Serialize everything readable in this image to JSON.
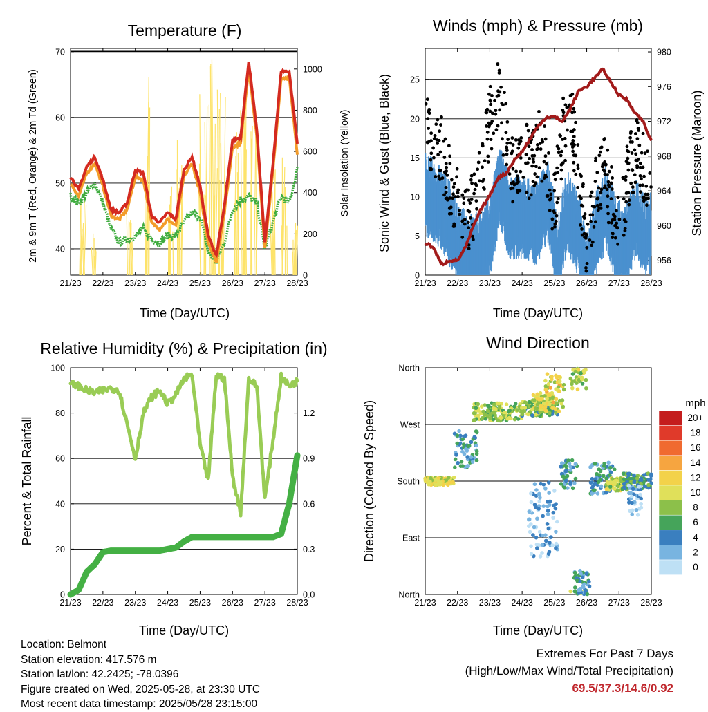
{
  "x_ticks": [
    "21/23",
    "22/23",
    "23/23",
    "24/23",
    "25/23",
    "26/23",
    "27/23",
    "28/23"
  ],
  "xlabel": "Time (Day/UTC)",
  "chart_data": [
    {
      "type": "line",
      "title": "Temperature (F)",
      "ylabel": "2m & 9m T (Red, Orange) & 2m Td (Green)",
      "ylim": [
        36,
        70.5
      ],
      "yticks": [
        40,
        50,
        60,
        70
      ],
      "y2label": "Solar Insolation (Yellow)",
      "y2lim": [
        0,
        1100
      ],
      "y2ticks": [
        0,
        200,
        400,
        600,
        800,
        1000
      ],
      "x": [
        0,
        0.25,
        0.5,
        0.75,
        1,
        1.25,
        1.5,
        1.75,
        2,
        2.25,
        2.5,
        2.75,
        3,
        3.25,
        3.5,
        3.75,
        4,
        4.25,
        4.5,
        4.75,
        5,
        5.25,
        5.5,
        5.75,
        6,
        6.25,
        6.5,
        6.75,
        7
      ],
      "series": [
        {
          "color": "#d42a20",
          "values": [
            51,
            49,
            52.5,
            54,
            50.5,
            46,
            45.5,
            47,
            52,
            51.5,
            45,
            44,
            45.5,
            44.5,
            52,
            54,
            49.5,
            42,
            39,
            46.5,
            56.5,
            57,
            68.5,
            58,
            41,
            53,
            67,
            67,
            56
          ]
        },
        {
          "color": "#f39c2a",
          "values": [
            50,
            48,
            51.5,
            53,
            49.5,
            45,
            44.5,
            46,
            51,
            50.5,
            44,
            43,
            44.5,
            43.5,
            51,
            53,
            48.5,
            41,
            38,
            45.5,
            55.5,
            56,
            67.5,
            57,
            40,
            52,
            66,
            66,
            54.5
          ]
        },
        {
          "color": "#3fac3f",
          "values": [
            48,
            47,
            48.5,
            50,
            47,
            43,
            41,
            41.5,
            42,
            43,
            41.5,
            41,
            42,
            42,
            44,
            45.5,
            45,
            39.5,
            38,
            41,
            46,
            47.5,
            48,
            47,
            40,
            44,
            48,
            47,
            52
          ]
        }
      ],
      "solar": {
        "color": "#fde36a",
        "peaks": [
          {
            "x": 1.85,
            "v": 320
          },
          {
            "x": 2.35,
            "v": 1020
          },
          {
            "x": 3.1,
            "v": 550
          },
          {
            "x": 3.35,
            "v": 700
          },
          {
            "x": 4.1,
            "v": 880
          },
          {
            "x": 4.4,
            "v": 1100
          },
          {
            "x": 4.65,
            "v": 950
          },
          {
            "x": 5.1,
            "v": 700
          },
          {
            "x": 5.35,
            "v": 1040
          },
          {
            "x": 5.65,
            "v": 850
          },
          {
            "x": 6.3,
            "v": 650
          },
          {
            "x": 6.6,
            "v": 600
          },
          {
            "x": 6.9,
            "v": 280
          },
          {
            "x": 0.35,
            "v": 380
          },
          {
            "x": 0.7,
            "v": 220
          }
        ]
      }
    },
    {
      "type": "scatter",
      "title": "Winds (mph) & Pressure (mb)",
      "ylabel": "Sonic Wind & Gust (Blue, Black)",
      "ylim": [
        0,
        29
      ],
      "yticks": [
        0,
        5,
        10,
        15,
        20,
        25
      ],
      "y2label": "Station Pressure (Maroon)",
      "y2lim": [
        954.3,
        980.4
      ],
      "y2ticks": [
        956,
        960,
        964,
        968,
        972,
        976,
        980
      ],
      "wind": {
        "color": "#4a90cf",
        "x": [
          0,
          0.5,
          0.9,
          1,
          1.5,
          2,
          2.3,
          2.6,
          3,
          3.4,
          3.8,
          4.1,
          4.4,
          4.8,
          5,
          5.3,
          5.6,
          5.9,
          6.2,
          6.5,
          6.8,
          7
        ],
        "values": [
          11,
          9,
          6,
          4,
          3,
          5,
          12,
          8,
          8,
          7,
          10,
          3,
          9,
          5,
          1,
          6,
          9,
          5,
          4,
          8,
          5,
          6
        ]
      },
      "gust": {
        "color": "#000000",
        "x": [
          0,
          0.25,
          0.5,
          0.75,
          1,
          1.25,
          1.5,
          1.75,
          2,
          2.25,
          2.5,
          2.75,
          3,
          3.25,
          3.5,
          3.75,
          4,
          4.25,
          4.5,
          4.75,
          5,
          5.25,
          5.5,
          5.75,
          6,
          6.25,
          6.5,
          6.75,
          7
        ],
        "values": [
          19,
          17,
          16,
          12,
          9,
          7,
          9,
          13,
          20,
          23,
          18,
          13,
          16,
          14,
          17,
          14,
          9,
          18,
          21,
          13,
          4,
          10,
          14,
          10,
          5,
          12,
          16,
          14,
          10
        ]
      },
      "pressure": {
        "color": "#a21a1a",
        "x": [
          0,
          0.25,
          0.5,
          0.75,
          1,
          1.25,
          1.5,
          1.75,
          2,
          2.25,
          2.5,
          2.75,
          3,
          3.25,
          3.5,
          3.75,
          4,
          4.25,
          4.5,
          4.75,
          5,
          5.25,
          5.5,
          5.75,
          6,
          6.25,
          6.5,
          6.75,
          7
        ],
        "values": [
          958,
          957.5,
          955.5,
          956,
          956,
          957.5,
          960,
          962,
          963.5,
          965.5,
          966,
          967.5,
          968.5,
          970,
          971.5,
          972.5,
          972.5,
          972,
          973.5,
          975.5,
          976,
          977,
          978,
          976.5,
          975,
          974.5,
          973,
          972,
          969.7
        ]
      }
    },
    {
      "type": "line",
      "title": "Relative Humidity (%) & Precipitation (in)",
      "ylabel": "Percent & Total Rainfall",
      "ylim": [
        0,
        100
      ],
      "yticks": [
        0,
        20,
        40,
        60,
        80,
        100
      ],
      "y2lim": [
        0,
        1.5
      ],
      "y2ticks": [
        "0.0",
        "0.3",
        "0.6",
        "0.9",
        "1.2"
      ],
      "x": [
        0,
        0.25,
        0.5,
        0.75,
        1,
        1.25,
        1.5,
        1.75,
        2,
        2.25,
        2.5,
        2.75,
        3,
        3.25,
        3.5,
        3.75,
        4,
        4.25,
        4.5,
        4.75,
        5,
        5.25,
        5.5,
        5.75,
        6,
        6.25,
        6.5,
        6.75,
        7
      ],
      "series": [
        {
          "name": "RH",
          "color": "#99cc55",
          "values": [
            93,
            92,
            90,
            89,
            90,
            91,
            90,
            75,
            60,
            80,
            87,
            90,
            84,
            88,
            95,
            97,
            66,
            50,
            97,
            95,
            52,
            36,
            95,
            92,
            42,
            68,
            96,
            92,
            94
          ]
        },
        {
          "name": "Precip",
          "color": "#44b044",
          "values": [
            0,
            0.03,
            0.15,
            0.2,
            0.28,
            0.29,
            0.29,
            0.29,
            0.29,
            0.29,
            0.29,
            0.29,
            0.3,
            0.31,
            0.35,
            0.38,
            0.38,
            0.38,
            0.38,
            0.38,
            0.38,
            0.38,
            0.38,
            0.38,
            0.38,
            0.38,
            0.4,
            0.6,
            0.92
          ]
        }
      ]
    },
    {
      "type": "scatter",
      "title": "Wind Direction",
      "ylabel": "Direction (Colored By Speed)",
      "yticks": [
        "North",
        "East",
        "South",
        "West",
        "North"
      ],
      "legend": {
        "unit": "mph",
        "labels": [
          "20+",
          "18",
          "16",
          "14",
          "12",
          "10",
          "8",
          "6",
          "4",
          "2",
          "0"
        ],
        "colors": [
          "#9c1a1a",
          "#c41d1d",
          "#e03a2a",
          "#f06a30",
          "#f6a540",
          "#f3d24a",
          "#e0e05a",
          "#8cc04a",
          "#45a45a",
          "#3a7fbf",
          "#78b4e0",
          "#bee0f5"
        ]
      },
      "clusters": [
        {
          "x0": 0,
          "x1": 0.9,
          "dir": 180,
          "spread": 6,
          "speed": 10
        },
        {
          "x0": 0.9,
          "x1": 1.6,
          "dir": 230,
          "spread": 30,
          "speed": 4
        },
        {
          "x0": 1.5,
          "x1": 3,
          "dir": 290,
          "spread": 14,
          "speed": 8
        },
        {
          "x0": 3,
          "x1": 4.1,
          "dir": 295,
          "spread": 12,
          "speed": 7
        },
        {
          "x0": 3.3,
          "x1": 4,
          "dir": 305,
          "spread": 15,
          "speed": 10
        },
        {
          "x0": 3.2,
          "x1": 4.1,
          "dir": 120,
          "spread": 60,
          "speed": 2
        },
        {
          "x0": 3.7,
          "x1": 4.3,
          "dir": 320,
          "spread": 30,
          "speed": 11
        },
        {
          "x0": 4.2,
          "x1": 4.7,
          "dir": 190,
          "spread": 25,
          "speed": 4
        },
        {
          "x0": 4.5,
          "x1": 5,
          "dir": 345,
          "spread": 20,
          "speed": 9
        },
        {
          "x0": 4.6,
          "x1": 5.1,
          "dir": 20,
          "spread": 20,
          "speed": 4
        },
        {
          "x0": 5.1,
          "x1": 5.9,
          "dir": 185,
          "spread": 25,
          "speed": 4
        },
        {
          "x0": 5.6,
          "x1": 6.3,
          "dir": 175,
          "spread": 10,
          "speed": 9
        },
        {
          "x0": 6.1,
          "x1": 7,
          "dir": 180,
          "spread": 12,
          "speed": 6
        },
        {
          "x0": 6.3,
          "x1": 6.7,
          "dir": 150,
          "spread": 25,
          "speed": 2
        }
      ]
    }
  ],
  "info": {
    "location": "Location: Belmont",
    "elevation": "Station elevation: 417.576 m",
    "latlon": "Station lat/lon: 42.2425; -78.0396",
    "created": "Figure created on Wed, 2025-05-28, at 23:30 UTC",
    "recent": "Most recent data timestamp: 2025/05/28 23:15:00"
  },
  "extremes": {
    "title": "Extremes For Past 7 Days",
    "subtitle": "(High/Low/Max Wind/Total Precipitation)",
    "values": "69.5/37.3/14.6/0.92"
  }
}
